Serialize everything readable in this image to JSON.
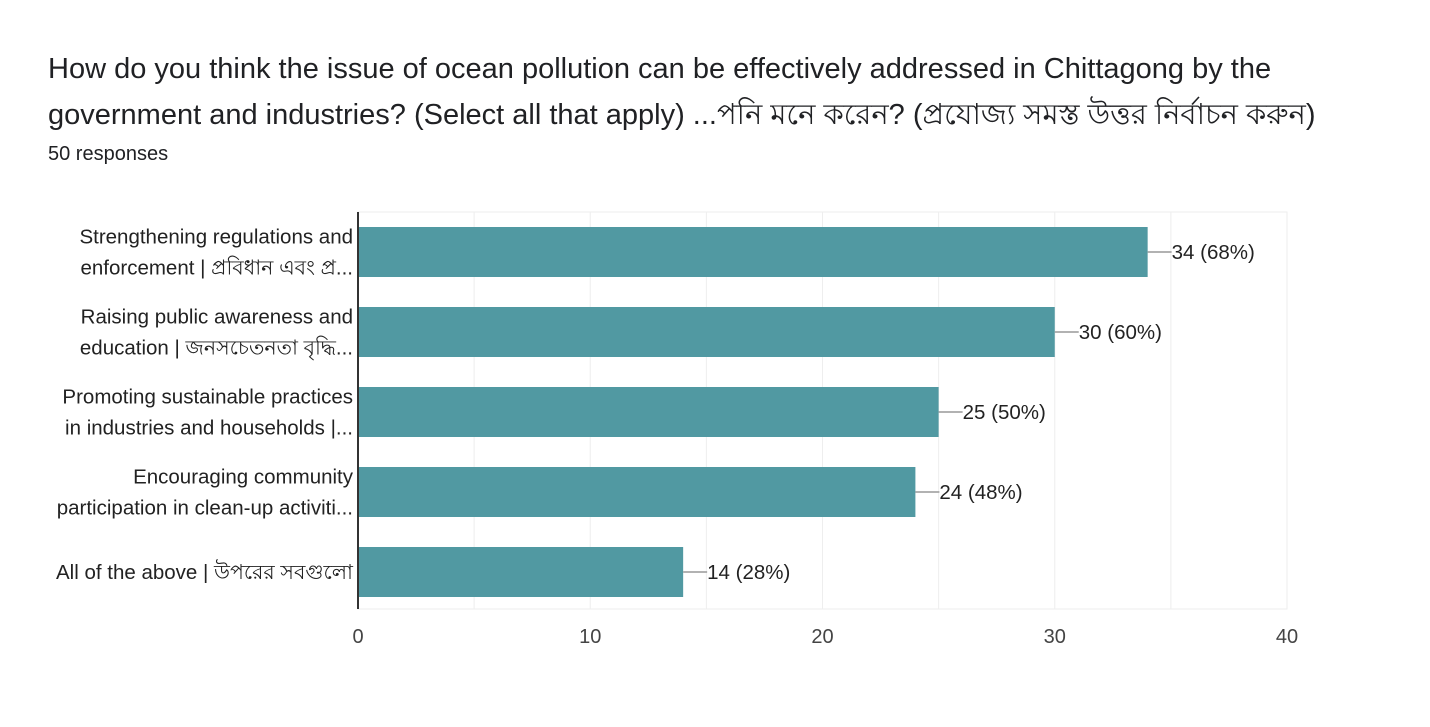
{
  "question": {
    "title": "How do you think the issue of ocean pollution can be effectively addressed in Chittagong by the government and industries? (Select all that apply) ...পনি মনে করেন? (প্রযোজ্য সমস্ত উত্তর নির্বাচন করুন)",
    "responses": "50 responses"
  },
  "colors": {
    "bar": "#5199a2",
    "grid": "#eeeeee",
    "axis": "#333333",
    "leader": "#999999"
  },
  "chart_data": {
    "type": "bar",
    "orientation": "horizontal",
    "categories": [
      [
        "Strengthening regulations and",
        "enforcement | প্রবিধান এবং প্র..."
      ],
      [
        "Raising public awareness and",
        "education | জনসচেতনতা বৃদ্ধি..."
      ],
      [
        "Promoting sustainable practices",
        "in industries and households |..."
      ],
      [
        "Encouraging community",
        "participation in clean-up activiti..."
      ],
      [
        "All of the above | উপরের সবগুলো"
      ]
    ],
    "values": [
      34,
      30,
      25,
      24,
      14
    ],
    "data_labels": [
      "34 (68%)",
      "30 (60%)",
      "25 (50%)",
      "24 (48%)",
      "14 (28%)"
    ],
    "xlim": [
      0,
      40
    ],
    "xticks": [
      "0",
      "10",
      "20",
      "30",
      "40"
    ],
    "grid": true
  }
}
